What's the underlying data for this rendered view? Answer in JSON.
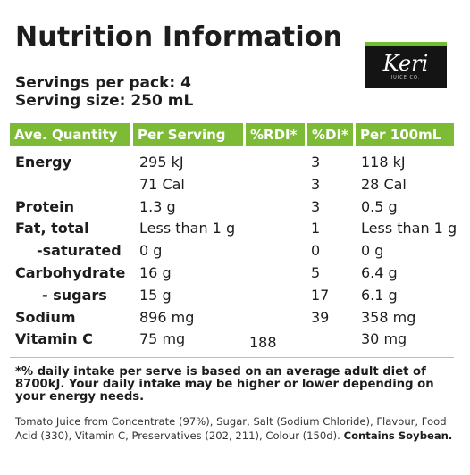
{
  "title": "Nutrition Information",
  "servings_per_pack": "Servings per pack: 4",
  "serving_size": "Serving size: 250 mL",
  "logo": {
    "brand": "Keri",
    "subtitle": "JUICE CO."
  },
  "table": {
    "headers": [
      "Ave. Quantity",
      "Per Serving",
      "%RDI*",
      "%DI*",
      "Per 100mL"
    ],
    "rows": [
      {
        "name": "Energy",
        "per_serving": "295 kJ",
        "rdi": "",
        "di": "3",
        "per_100ml": "118 kJ"
      },
      {
        "name": "",
        "per_serving": "71 Cal",
        "rdi": "",
        "di": "3",
        "per_100ml": "28 Cal"
      },
      {
        "name": "Protein",
        "per_serving": "1.3 g",
        "rdi": "",
        "di": "3",
        "per_100ml": "0.5 g"
      },
      {
        "name": "Fat, total",
        "per_serving": "Less than 1 g",
        "rdi": "",
        "di": "1",
        "per_100ml": "Less than 1 g"
      },
      {
        "name": "-saturated",
        "per_serving": "0 g",
        "rdi": "",
        "di": "0",
        "per_100ml": "0 g"
      },
      {
        "name": "Carbohydrate",
        "per_serving": "16 g",
        "rdi": "",
        "di": "5",
        "per_100ml": "6.4 g"
      },
      {
        "name": "- sugars",
        "per_serving": "15 g",
        "rdi": "",
        "di": "17",
        "per_100ml": "6.1 g"
      },
      {
        "name": "Sodium",
        "per_serving": "896 mg",
        "rdi": "",
        "di": "39",
        "per_100ml": "358 mg"
      },
      {
        "name": "Vitamin C",
        "per_serving": "75 mg",
        "rdi": "188",
        "di": "",
        "per_100ml": "30 mg"
      }
    ]
  },
  "footnote": "*% daily intake per serve is based on an average adult diet of 8700kJ. Your daily intake may be higher or lower depending on your energy needs.",
  "ingredients": {
    "text": "Tomato Juice from Concentrate (97%), Sugar, Salt (Sodium Chloride), Flavour, Food Acid (330), Vitamin C, Preservatives (202, 211), Colour (150d).",
    "allergen": "Contains Soybean."
  },
  "colors": {
    "header_green": "#7dbb37",
    "logo_bg": "#141414",
    "logo_accent": "#6fbe2c"
  }
}
